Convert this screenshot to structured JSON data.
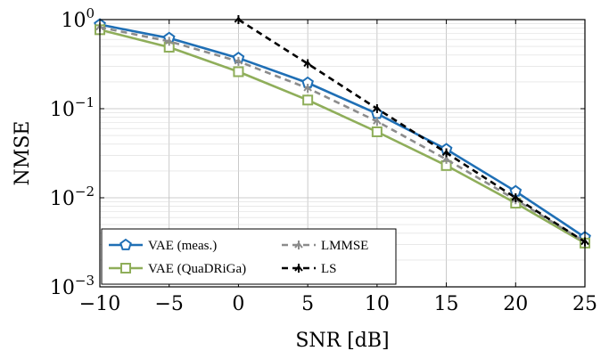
{
  "chart_data": {
    "type": "line",
    "xlabel": "SNR [dB]",
    "ylabel": "NMSE",
    "x": [
      -10,
      -5,
      0,
      5,
      10,
      15,
      20,
      25
    ],
    "xlim": [
      -10,
      25
    ],
    "ylim": [
      0.001,
      1
    ],
    "yscale": "log",
    "grid": true,
    "x_tick_labels": [
      "−10",
      "−5",
      "0",
      "5",
      "10",
      "15",
      "20",
      "25"
    ],
    "y_tick_labels": [
      {
        "base": "10",
        "exp": "0",
        "value": 1
      },
      {
        "base": "10",
        "exp": "−1",
        "value": 0.1
      },
      {
        "base": "10",
        "exp": "−2",
        "value": 0.01
      },
      {
        "base": "10",
        "exp": "−3",
        "value": 0.001
      }
    ],
    "legend_position": "bottom-left",
    "series": [
      {
        "name": "VAE (meas.)",
        "color": "#1f6fb5",
        "style": "solid",
        "marker": "pentagon",
        "x": [
          -10,
          -5,
          0,
          5,
          10,
          15,
          20,
          25
        ],
        "values": [
          0.88,
          0.62,
          0.37,
          0.195,
          0.088,
          0.035,
          0.0118,
          0.0036
        ]
      },
      {
        "name": "VAE (QuaDRiGa)",
        "color": "#8fae5a",
        "style": "solid",
        "marker": "square",
        "x": [
          -10,
          -5,
          0,
          5,
          10,
          15,
          20,
          25
        ],
        "values": [
          0.77,
          0.49,
          0.26,
          0.125,
          0.055,
          0.023,
          0.0087,
          0.0031
        ]
      },
      {
        "name": "LMMSE",
        "color": "#8c8c8c",
        "style": "dashed",
        "marker": "tri",
        "x": [
          -10,
          -5,
          0,
          5,
          10,
          15,
          20,
          25
        ],
        "values": [
          0.82,
          0.57,
          0.34,
          0.17,
          0.072,
          0.027,
          0.0095,
          0.0032
        ]
      },
      {
        "name": "LS",
        "color": "#000000",
        "style": "dashed",
        "marker": "tri",
        "x": [
          0,
          5,
          10,
          15,
          20,
          25
        ],
        "values": [
          1.0,
          0.32,
          0.1,
          0.032,
          0.01,
          0.0032
        ]
      }
    ]
  }
}
